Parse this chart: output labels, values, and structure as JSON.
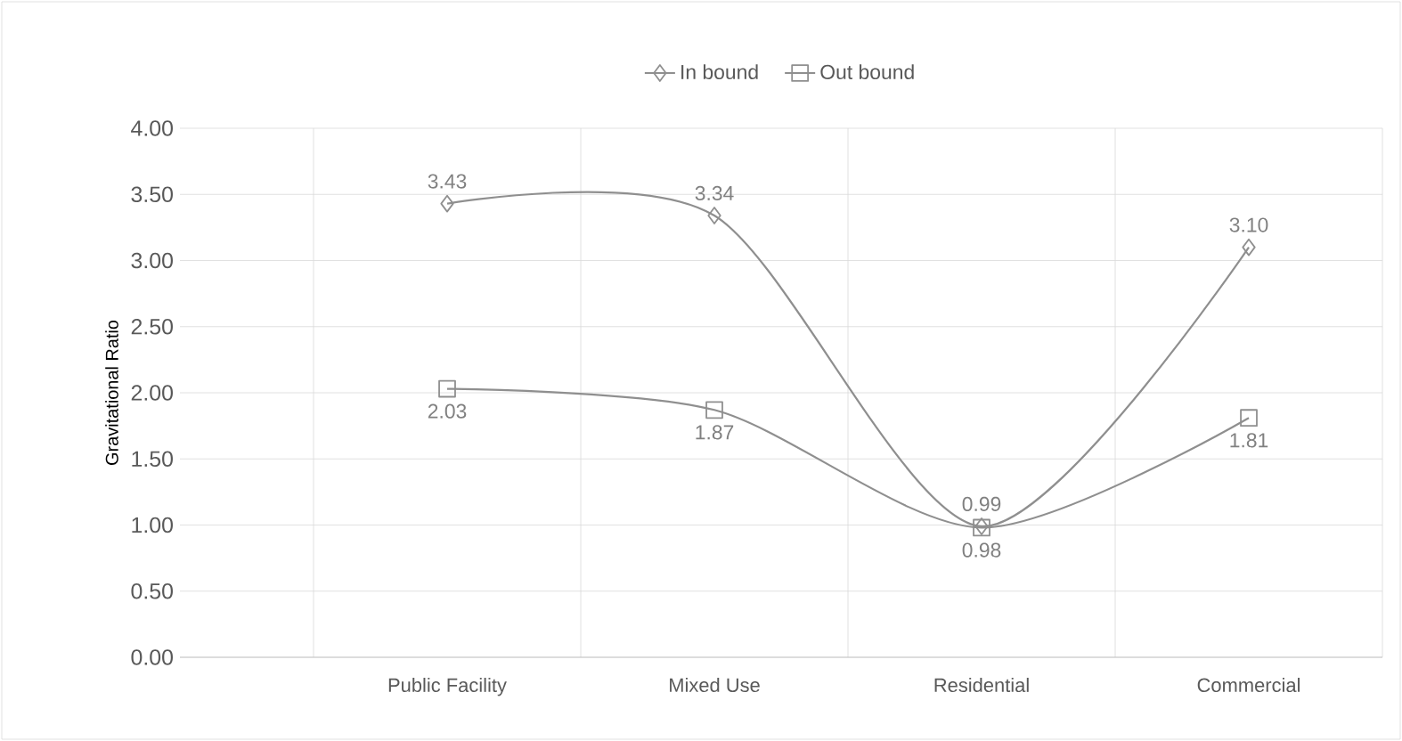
{
  "chart_data": {
    "type": "line",
    "ylabel": "Gravitational Ratio",
    "categories": [
      null,
      "Public Facility",
      "Mixed Use",
      "Residential",
      "Commercial"
    ],
    "series": [
      {
        "name": "In bound",
        "color": "#8f8f8f",
        "marker": "diamond",
        "values": [
          null,
          3.43,
          3.34,
          0.99,
          3.1
        ],
        "value_labels": [
          null,
          "3.43",
          "3.34",
          "0.99",
          "3.10"
        ]
      },
      {
        "name": "Out bound",
        "color": "#8f8f8f",
        "marker": "square",
        "values": [
          null,
          2.03,
          1.87,
          0.98,
          1.81
        ],
        "value_labels": [
          null,
          "2.03",
          "1.87",
          "0.98",
          "1.81"
        ]
      }
    ],
    "ylim": [
      0,
      4
    ],
    "yticks": [
      {
        "value": 0,
        "label": "0.00"
      },
      {
        "value": 0.5,
        "label": "0.50"
      },
      {
        "value": 1,
        "label": "1.00"
      },
      {
        "value": 1.5,
        "label": "1.50"
      },
      {
        "value": 2,
        "label": "2.00"
      },
      {
        "value": 2.5,
        "label": "2.50"
      },
      {
        "value": 3,
        "label": "3.00"
      },
      {
        "value": 3.5,
        "label": "3.50"
      },
      {
        "value": 4,
        "label": "4.00"
      }
    ],
    "grid": true,
    "legend": "top"
  }
}
